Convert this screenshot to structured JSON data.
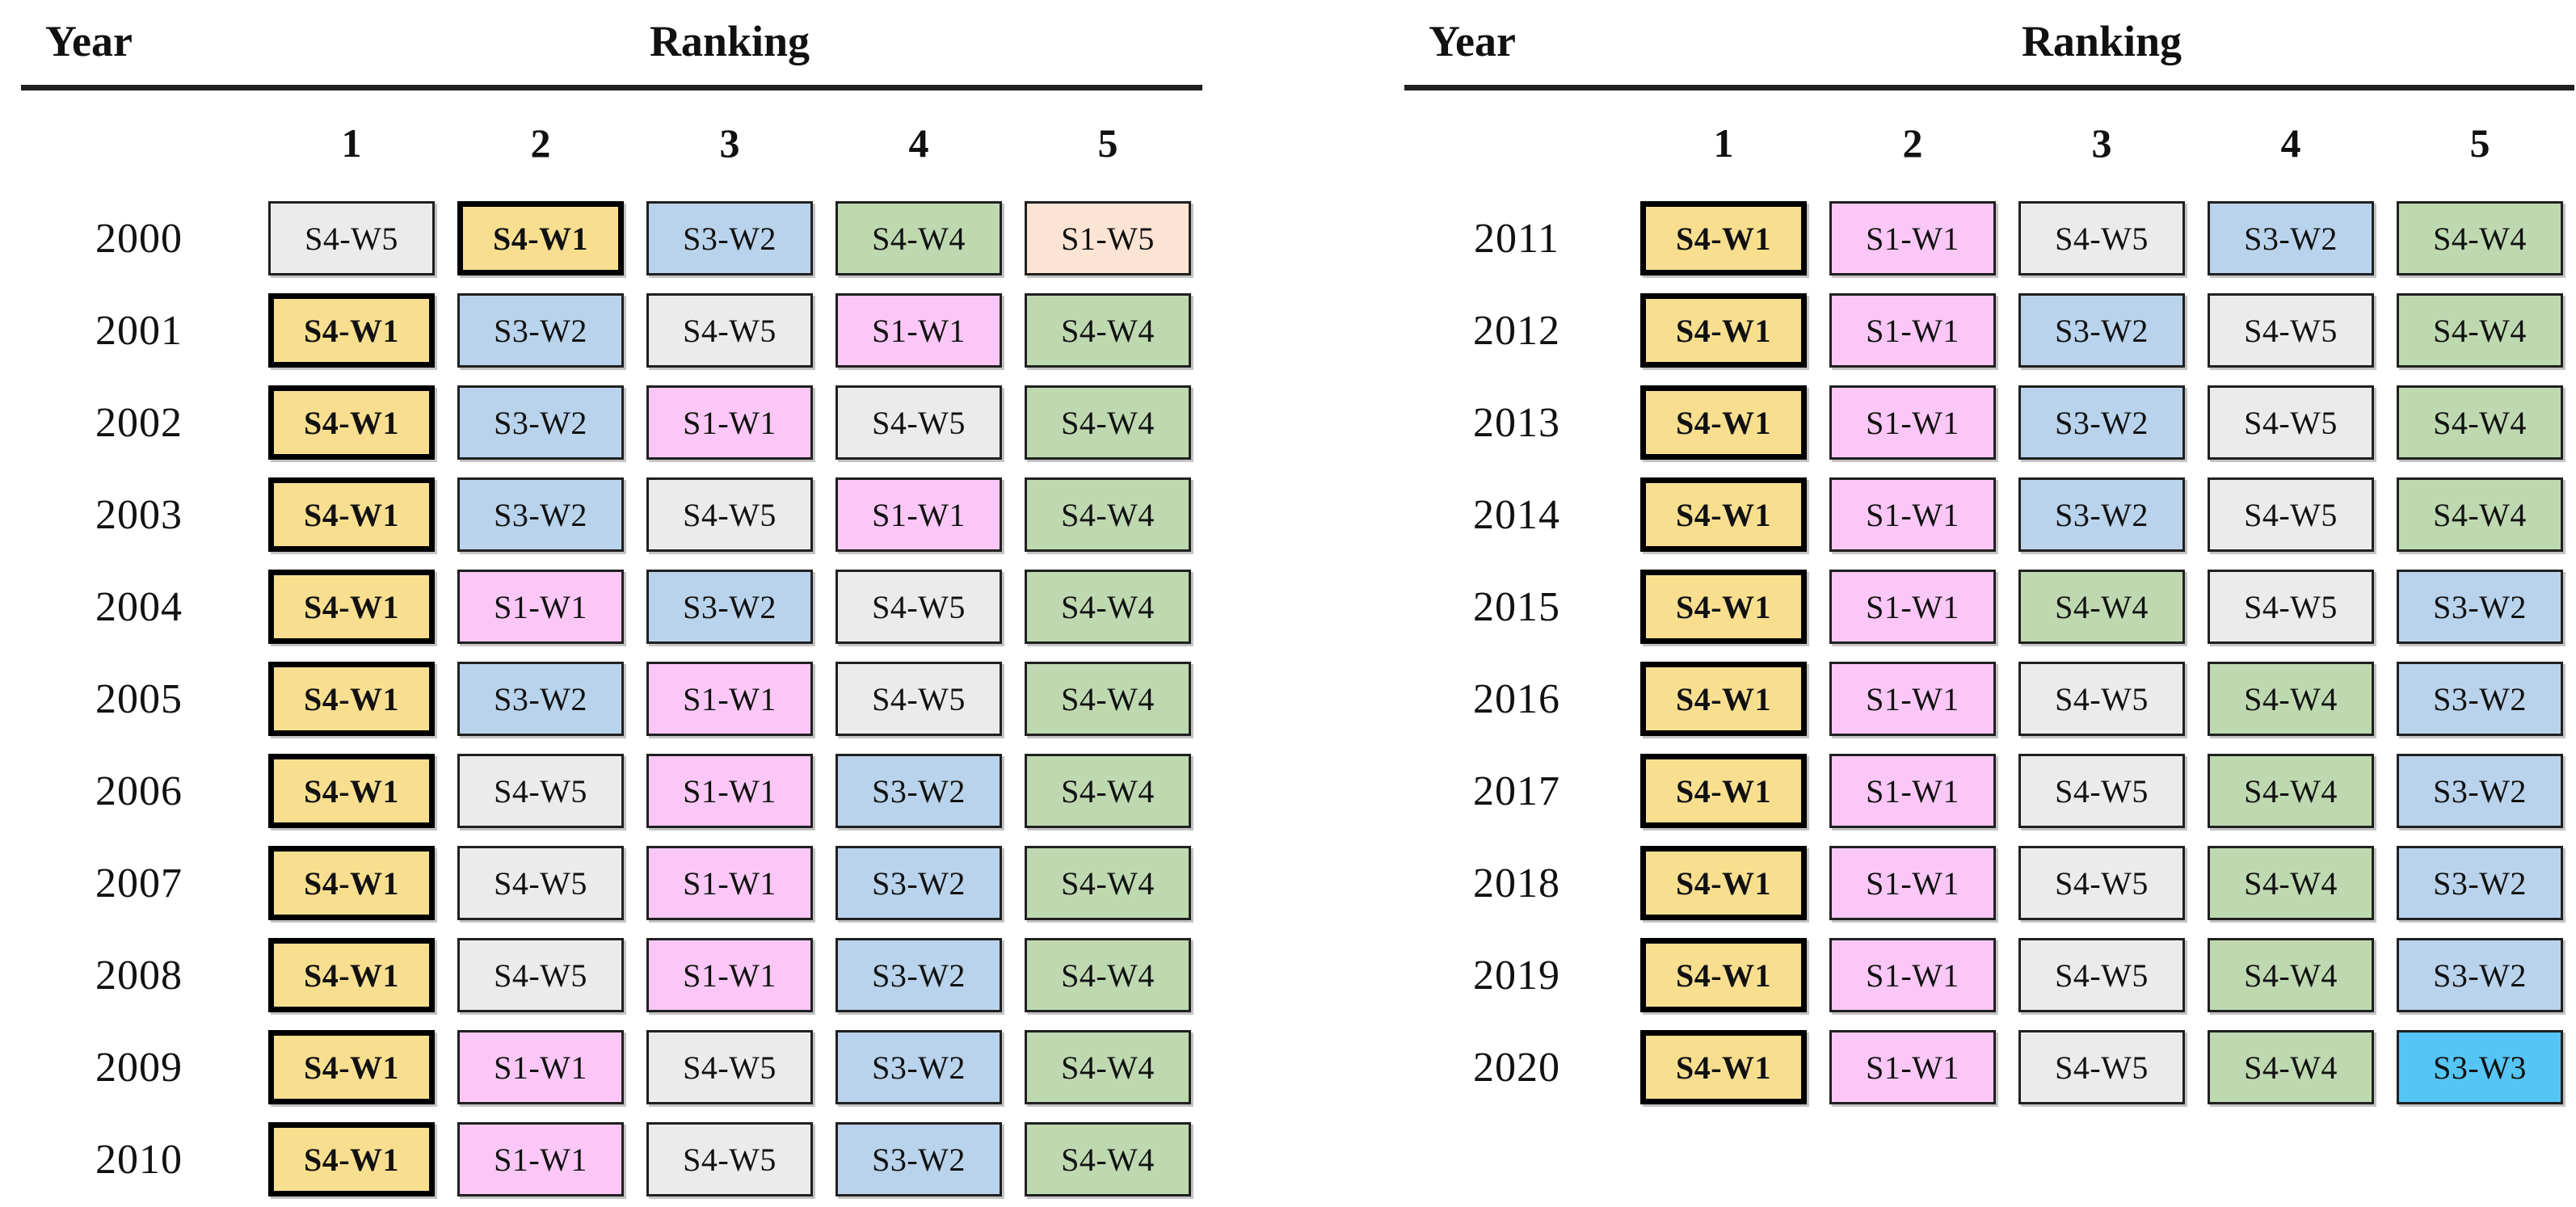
{
  "styles": {
    "highlight_label": "S4-W1",
    "colors": {
      "S4-W1": "#F8DF90",
      "S1-W1": "#FAC7F6",
      "S4-W5": "#EBEBEB",
      "S3-W2": "#B9D3EC",
      "S4-W4": "#BED9B0",
      "S1-W5": "#FBE4D3",
      "S3-W3": "#55C5F6"
    }
  },
  "chart_data": [
    {
      "type": "table",
      "year_header": "Year",
      "ranking_header": "Ranking",
      "rank_columns": [
        "1",
        "2",
        "3",
        "4",
        "5"
      ],
      "rows": [
        {
          "year": "2000",
          "ranks": [
            "S4-W5",
            "S4-W1",
            "S3-W2",
            "S4-W4",
            "S1-W5"
          ]
        },
        {
          "year": "2001",
          "ranks": [
            "S4-W1",
            "S3-W2",
            "S4-W5",
            "S1-W1",
            "S4-W4"
          ]
        },
        {
          "year": "2002",
          "ranks": [
            "S4-W1",
            "S3-W2",
            "S1-W1",
            "S4-W5",
            "S4-W4"
          ]
        },
        {
          "year": "2003",
          "ranks": [
            "S4-W1",
            "S3-W2",
            "S4-W5",
            "S1-W1",
            "S4-W4"
          ]
        },
        {
          "year": "2004",
          "ranks": [
            "S4-W1",
            "S1-W1",
            "S3-W2",
            "S4-W5",
            "S4-W4"
          ]
        },
        {
          "year": "2005",
          "ranks": [
            "S4-W1",
            "S3-W2",
            "S1-W1",
            "S4-W5",
            "S4-W4"
          ]
        },
        {
          "year": "2006",
          "ranks": [
            "S4-W1",
            "S4-W5",
            "S1-W1",
            "S3-W2",
            "S4-W4"
          ]
        },
        {
          "year": "2007",
          "ranks": [
            "S4-W1",
            "S4-W5",
            "S1-W1",
            "S3-W2",
            "S4-W4"
          ]
        },
        {
          "year": "2008",
          "ranks": [
            "S4-W1",
            "S4-W5",
            "S1-W1",
            "S3-W2",
            "S4-W4"
          ]
        },
        {
          "year": "2009",
          "ranks": [
            "S4-W1",
            "S1-W1",
            "S4-W5",
            "S3-W2",
            "S4-W4"
          ]
        },
        {
          "year": "2010",
          "ranks": [
            "S4-W1",
            "S1-W1",
            "S4-W5",
            "S3-W2",
            "S4-W4"
          ]
        }
      ]
    },
    {
      "type": "table",
      "year_header": "Year",
      "ranking_header": "Ranking",
      "rank_columns": [
        "1",
        "2",
        "3",
        "4",
        "5"
      ],
      "rows": [
        {
          "year": "2011",
          "ranks": [
            "S4-W1",
            "S1-W1",
            "S4-W5",
            "S3-W2",
            "S4-W4"
          ]
        },
        {
          "year": "2012",
          "ranks": [
            "S4-W1",
            "S1-W1",
            "S3-W2",
            "S4-W5",
            "S4-W4"
          ]
        },
        {
          "year": "2013",
          "ranks": [
            "S4-W1",
            "S1-W1",
            "S3-W2",
            "S4-W5",
            "S4-W4"
          ]
        },
        {
          "year": "2014",
          "ranks": [
            "S4-W1",
            "S1-W1",
            "S3-W2",
            "S4-W5",
            "S4-W4"
          ]
        },
        {
          "year": "2015",
          "ranks": [
            "S4-W1",
            "S1-W1",
            "S4-W4",
            "S4-W5",
            "S3-W2"
          ]
        },
        {
          "year": "2016",
          "ranks": [
            "S4-W1",
            "S1-W1",
            "S4-W5",
            "S4-W4",
            "S3-W2"
          ]
        },
        {
          "year": "2017",
          "ranks": [
            "S4-W1",
            "S1-W1",
            "S4-W5",
            "S4-W4",
            "S3-W2"
          ]
        },
        {
          "year": "2018",
          "ranks": [
            "S4-W1",
            "S1-W1",
            "S4-W5",
            "S4-W4",
            "S3-W2"
          ]
        },
        {
          "year": "2019",
          "ranks": [
            "S4-W1",
            "S1-W1",
            "S4-W5",
            "S4-W4",
            "S3-W2"
          ]
        },
        {
          "year": "2020",
          "ranks": [
            "S4-W1",
            "S1-W1",
            "S4-W5",
            "S4-W4",
            "S3-W3"
          ]
        }
      ]
    }
  ]
}
